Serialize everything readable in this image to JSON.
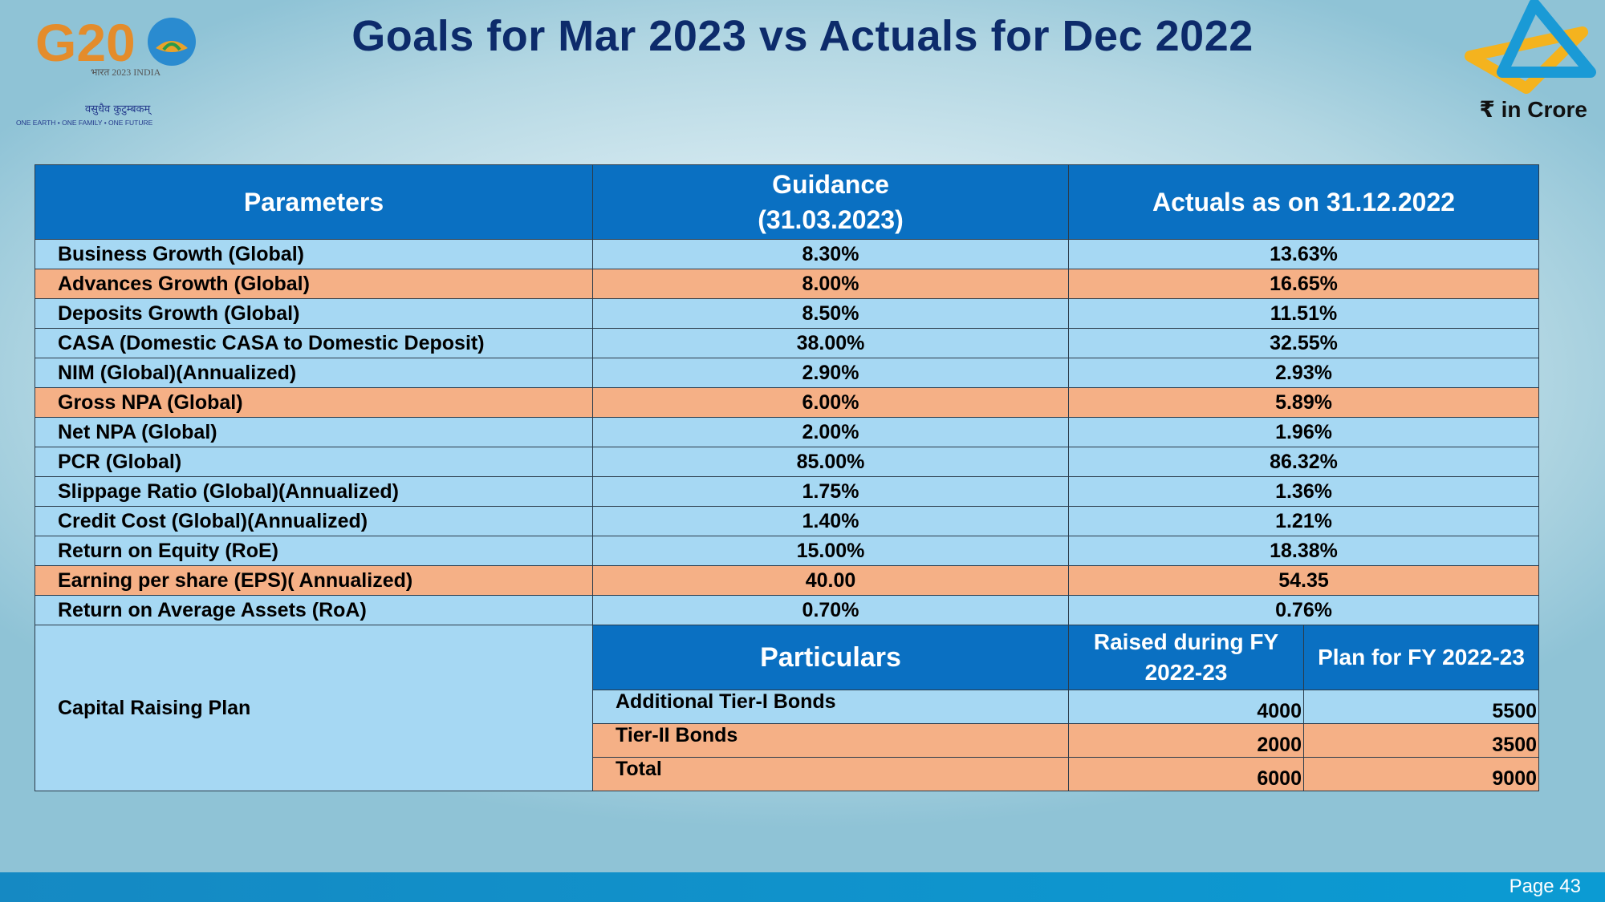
{
  "title": "Goals for Mar 2023 vs Actuals for Dec 2022",
  "currency_note": "₹ in Crore",
  "logo": {
    "g20_text": "G20",
    "g20_sub": "भारत 2023 INDIA",
    "g20_hindi": "वसुधैव कुटुम्बकम्",
    "g20_tagline": "ONE EARTH • ONE FAMILY • ONE FUTURE"
  },
  "table": {
    "headers": {
      "parameters": "Parameters",
      "guidance_line1": "Guidance",
      "guidance_line2": "(31.03.2023)",
      "actuals": "Actuals as on 31.12.2022"
    },
    "rows": [
      {
        "param": "Business Growth (Global)",
        "guidance": "8.30%",
        "actual": "13.63%",
        "actual_color": "green",
        "highlight": false
      },
      {
        "param": "Advances Growth (Global)",
        "guidance": "8.00%",
        "actual": "16.65%",
        "actual_color": "green",
        "highlight": true
      },
      {
        "param": "Deposits Growth (Global)",
        "guidance": "8.50%",
        "actual": "11.51%",
        "actual_color": "green",
        "highlight": false
      },
      {
        "param": "CASA (Domestic CASA to Domestic Deposit)",
        "guidance": "38.00%",
        "actual": "32.55%",
        "actual_color": "black",
        "highlight": false
      },
      {
        "param": "NIM (Global)(Annualized)",
        "guidance": "2.90%",
        "actual": "2.93%",
        "actual_color": "green",
        "highlight": false
      },
      {
        "param": "Gross NPA (Global)",
        "guidance": "6.00%",
        "actual": "5.89%",
        "actual_color": "green",
        "highlight": true
      },
      {
        "param": "Net NPA (Global)",
        "guidance": "2.00%",
        "actual": "1.96%",
        "actual_color": "green",
        "highlight": false
      },
      {
        "param": "PCR (Global)",
        "guidance": "85.00%",
        "actual": "86.32%",
        "actual_color": "green",
        "highlight": false
      },
      {
        "param": "Slippage Ratio (Global)(Annualized)",
        "guidance": "1.75%",
        "actual": "1.36%",
        "actual_color": "green",
        "highlight": false
      },
      {
        "param": "Credit Cost (Global)(Annualized)",
        "guidance": "1.40%",
        "actual": "1.21%",
        "actual_color": "green",
        "highlight": false
      },
      {
        "param": "Return on Equity (RoE)",
        "guidance": "15.00%",
        "actual": "18.38%",
        "actual_color": "green",
        "highlight": false
      },
      {
        "param": "Earning per share (EPS)( Annualized)",
        "guidance": "40.00",
        "actual": "54.35",
        "actual_color": "green",
        "highlight": true
      },
      {
        "param": "Return on Average Assets (RoA)",
        "guidance": "0.70%",
        "actual": "0.76%",
        "actual_color": "green",
        "highlight": false
      }
    ]
  },
  "capital": {
    "label": "Capital Raising Plan",
    "headers": {
      "particulars": "Particulars",
      "raised_line1": "Raised during FY",
      "raised_line2": "2022-23",
      "plan": "Plan for FY 2022-23"
    },
    "rows": [
      {
        "particular": "Additional Tier-I Bonds",
        "raised": "4000",
        "plan": "5500",
        "highlight": false
      },
      {
        "particular": "Tier-II Bonds",
        "raised": "2000",
        "plan": "3500",
        "highlight": true
      },
      {
        "particular": "Total",
        "raised": "6000",
        "plan": "9000",
        "highlight": true
      }
    ]
  },
  "colors": {
    "header_blue": "#0a70c2",
    "row_blue": "#a6d8f3",
    "row_orange": "#f5b086",
    "positive_green": "#22a53a",
    "title_navy": "#0d2b6b"
  },
  "footer": {
    "page": "Page 43"
  }
}
